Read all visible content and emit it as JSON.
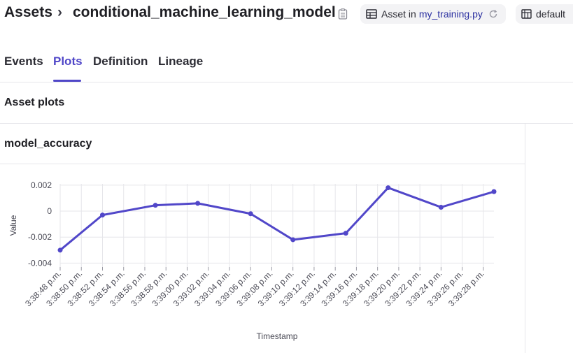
{
  "breadcrumb": {
    "root": "Assets",
    "separator": "›",
    "asset_name": "conditional_machine_learning_model"
  },
  "icons": {
    "copy": "copy-icon",
    "table": "table-icon",
    "refresh": "refresh-icon",
    "database": "database-icon"
  },
  "asset_chip": {
    "prefix": "Asset in",
    "file": "my_training.py"
  },
  "location_chip": {
    "label": "default"
  },
  "tabs": [
    {
      "label": "Events",
      "active": false
    },
    {
      "label": "Plots",
      "active": true
    },
    {
      "label": "Definition",
      "active": false
    },
    {
      "label": "Lineage",
      "active": false
    }
  ],
  "section": {
    "title": "Asset plots"
  },
  "plot": {
    "title": "model_accuracy"
  },
  "colors": {
    "accent": "#4f46c8",
    "line": "#5147c9",
    "grid": "#e6e6ea"
  },
  "chart_data": {
    "type": "line",
    "xlabel": "Timestamp",
    "ylabel": "Value",
    "ylim": [
      -0.0043,
      0.0021
    ],
    "yticks": [
      0.002,
      0,
      -0.002,
      -0.004
    ],
    "ytick_labels": [
      "0.002",
      "0",
      "-0.002",
      "-0.004"
    ],
    "xlim_seconds": [
      "3:38:48 p.m.",
      "3:39:29 p.m."
    ],
    "xticks": [
      "3:38:48 p.m.",
      "3:38:50 p.m.",
      "3:38:52 p.m.",
      "3:38:54 p.m.",
      "3:38:56 p.m.",
      "3:38:58 p.m.",
      "3:39:00 p.m.",
      "3:39:02 p.m.",
      "3:39:04 p.m.",
      "3:39:06 p.m.",
      "3:39:08 p.m.",
      "3:39:10 p.m.",
      "3:39:12 p.m.",
      "3:39:14 p.m.",
      "3:39:16 p.m.",
      "3:39:18 p.m.",
      "3:39:20 p.m.",
      "3:39:22 p.m.",
      "3:39:24 p.m.",
      "3:39:26 p.m.",
      "3:39:28 p.m."
    ],
    "grid": true,
    "legend": "none",
    "series": [
      {
        "x": [
          "3:38:48 p.m.",
          "3:38:52 p.m.",
          "3:38:57 p.m.",
          "3:39:01 p.m.",
          "3:39:06 p.m.",
          "3:39:10 p.m.",
          "3:39:15 p.m.",
          "3:39:19 p.m.",
          "3:39:24 p.m.",
          "3:39:29 p.m."
        ],
        "values": [
          -0.003,
          -0.0003,
          0.00045,
          0.0006,
          -0.0002,
          -0.0022,
          -0.0017,
          0.0018,
          0.0003,
          0.0015
        ]
      }
    ]
  }
}
